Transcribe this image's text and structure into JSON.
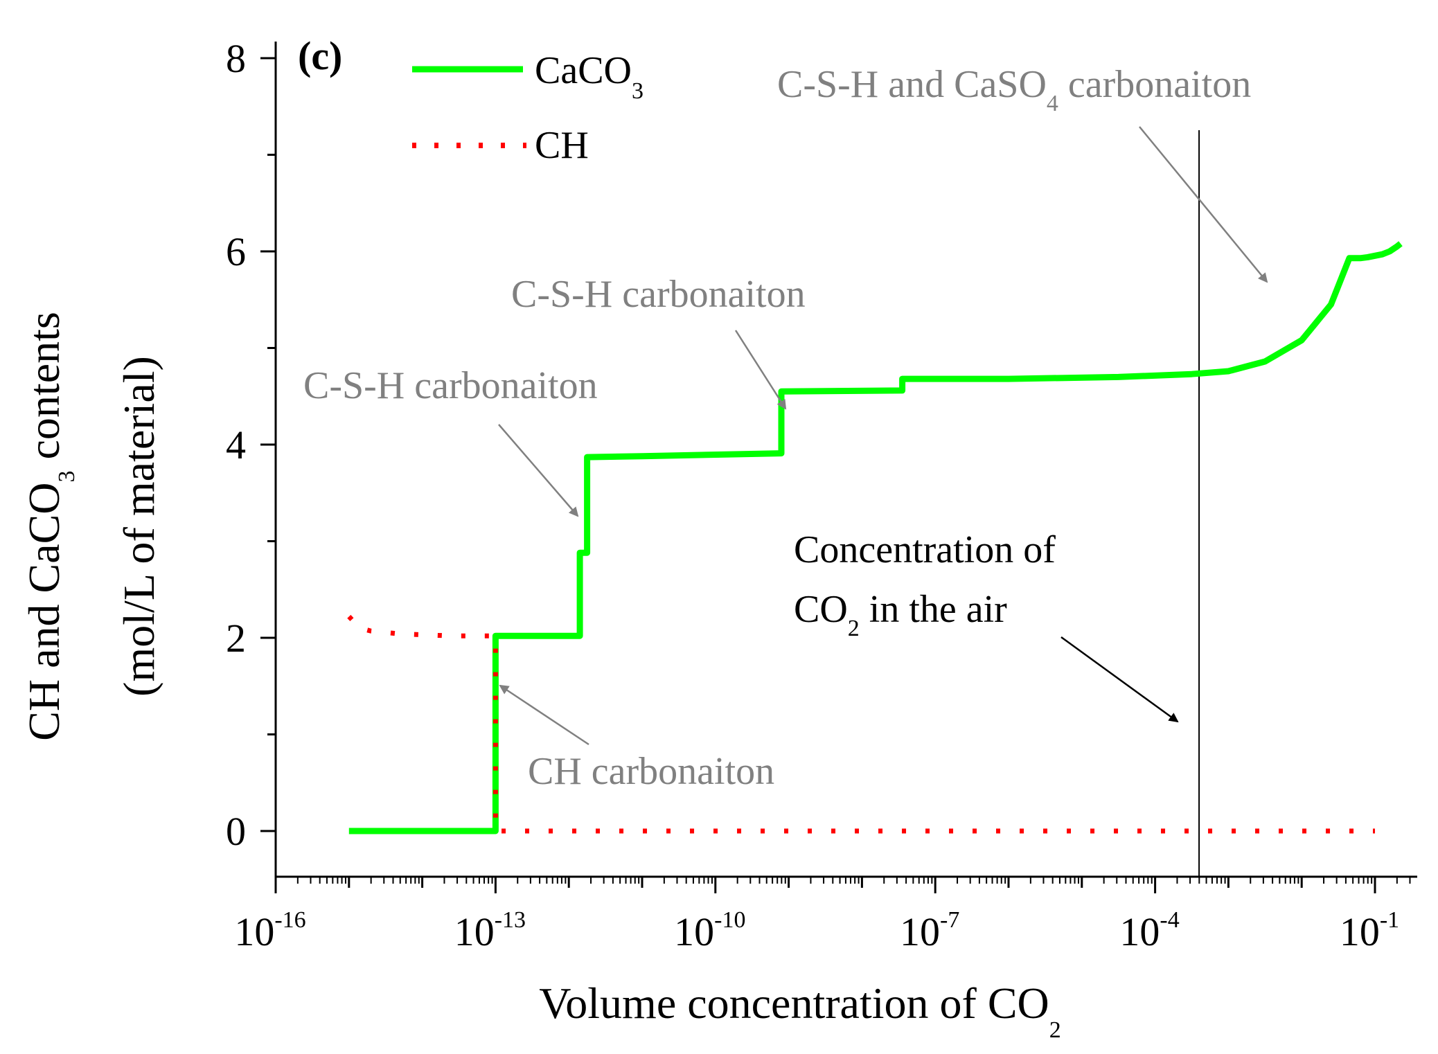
{
  "chart_data": {
    "type": "line",
    "panel_label": "(c)",
    "xscale": "log",
    "xlim_exponent": [
      -16,
      0
    ],
    "ylim": [
      -0.5,
      8.5
    ],
    "x_ticks": [
      {
        "base": "10",
        "exp": "-16",
        "value": -16
      },
      {
        "base": "10",
        "exp": "-13",
        "value": -13
      },
      {
        "base": "10",
        "exp": "-10",
        "value": -10
      },
      {
        "base": "10",
        "exp": "-7",
        "value": -7
      },
      {
        "base": "10",
        "exp": "-4",
        "value": -4
      },
      {
        "base": "10",
        "exp": "-1",
        "value": -1
      }
    ],
    "y_ticks": [
      "0",
      "2",
      "4",
      "6",
      "8"
    ],
    "xlabel": {
      "main": "Volume concentration of CO",
      "sub": "2"
    },
    "ylabel": {
      "line1_pre": "CH and CaCO",
      "line1_sub": "3",
      "line1_post": " contents",
      "line2": "(mol/L of material)"
    },
    "series": [
      {
        "name": "CaCO3",
        "legend_main": "CaCO",
        "legend_sub": "3",
        "color": "#00ff00",
        "style": "solid",
        "points": [
          [
            -15,
            0
          ],
          [
            -13,
            0
          ],
          [
            -13,
            2.02
          ],
          [
            -11.85,
            2.02
          ],
          [
            -11.85,
            2.88
          ],
          [
            -11.75,
            2.88
          ],
          [
            -11.75,
            3.87
          ],
          [
            -11,
            3.88
          ],
          [
            -9.1,
            3.91
          ],
          [
            -9.1,
            4.55
          ],
          [
            -7.45,
            4.56
          ],
          [
            -7.45,
            4.68
          ],
          [
            -6,
            4.68
          ],
          [
            -4.5,
            4.7
          ],
          [
            -3.5,
            4.73
          ],
          [
            -3,
            4.76
          ],
          [
            -2.5,
            4.86
          ],
          [
            -2,
            5.08
          ],
          [
            -1.6,
            5.45
          ],
          [
            -1.35,
            5.93
          ],
          [
            -1.2,
            5.93
          ],
          [
            -1.1,
            5.94
          ],
          [
            -0.9,
            5.97
          ],
          [
            -0.8,
            6.0
          ],
          [
            -0.7,
            6.05
          ],
          [
            -0.65,
            6.08
          ]
        ]
      },
      {
        "name": "CH",
        "legend_main": "CH",
        "legend_sub": "",
        "color": "#ff0000",
        "style": "dotted",
        "points": [
          [
            -15,
            2.22
          ],
          [
            -14.85,
            2.1
          ],
          [
            -14.7,
            2.07
          ],
          [
            -14.3,
            2.04
          ],
          [
            -13.6,
            2.02
          ],
          [
            -13,
            2.02
          ],
          [
            -13,
            0
          ],
          [
            -1,
            0
          ]
        ]
      }
    ],
    "vertical_line": {
      "x": -3.4,
      "color": "#000000"
    },
    "annotations": [
      {
        "text": "CH carbonaiton",
        "color": "#808080"
      },
      {
        "text": "C-S-H carbonaiton",
        "color": "#808080"
      },
      {
        "text": "C-S-H carbonaiton",
        "color": "#808080"
      },
      {
        "pre": "C-S-H and CaSO",
        "sub": "4",
        "post": " carbonaiton",
        "color": "#808080"
      },
      {
        "line1": "Concentration of",
        "line2_pre": "CO",
        "line2_sub": "2",
        "line2_post": "  in the air",
        "color": "#000000"
      }
    ]
  }
}
